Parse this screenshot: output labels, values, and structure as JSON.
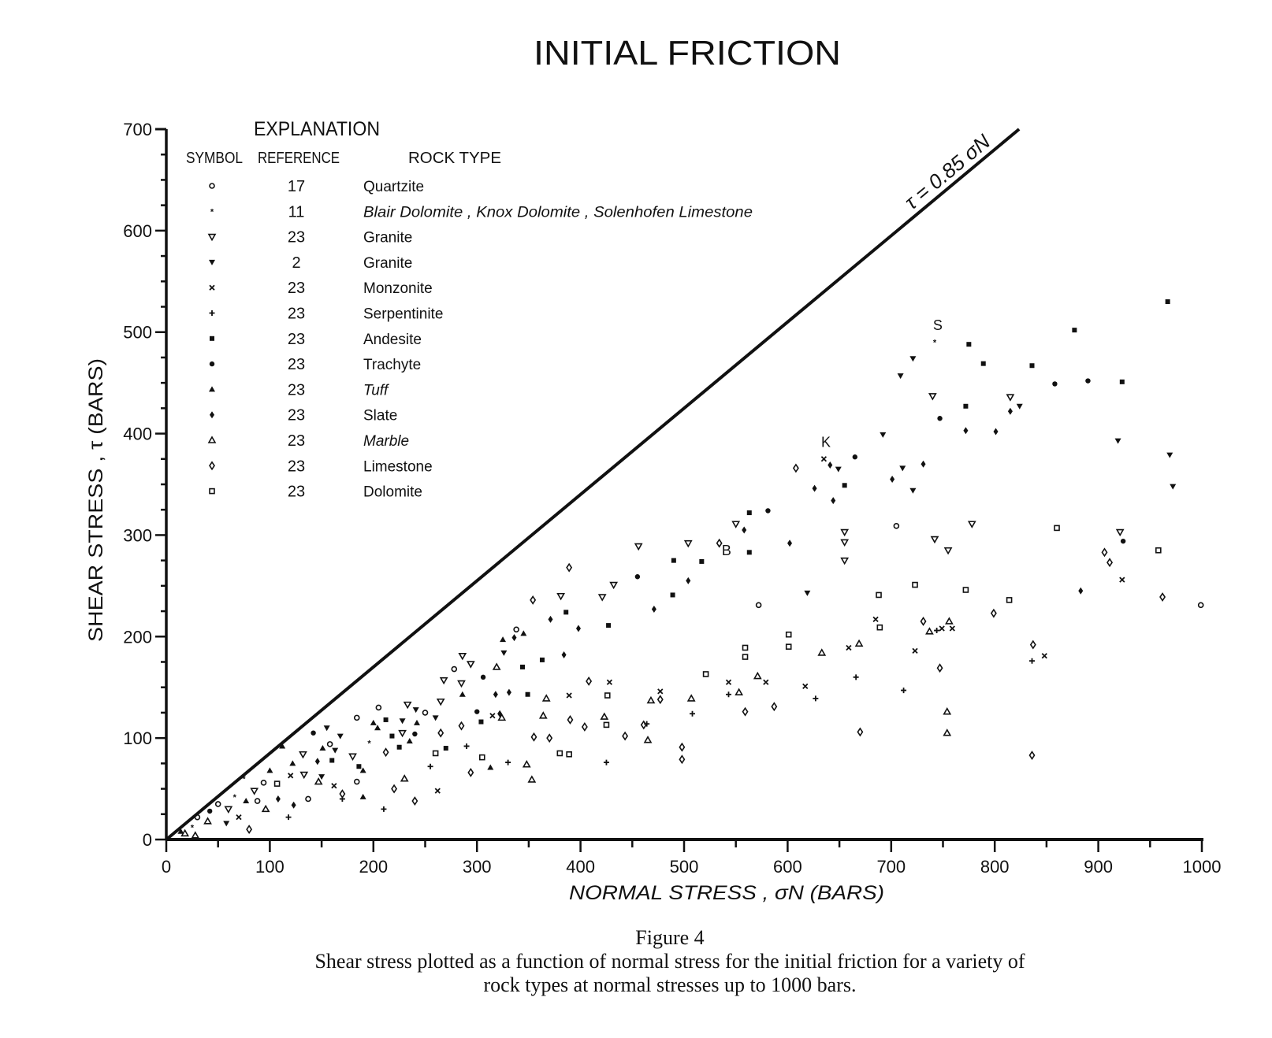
{
  "chart_data": {
    "type": "scatter",
    "title": "INITIAL FRICTION",
    "xlabel": "NORMAL STRESS , σN (BARS)",
    "ylabel": "SHEAR STRESS , τ (BARS)",
    "xlim": [
      0,
      1000
    ],
    "ylim": [
      0,
      700
    ],
    "x_ticks": [
      "0",
      "100",
      "200",
      "300",
      "400",
      "500",
      "600",
      "700",
      "800",
      "900",
      "1000"
    ],
    "y_ticks": [
      "0",
      "100",
      "200",
      "300",
      "400",
      "500",
      "600",
      "700"
    ],
    "grid": false,
    "reference_line": {
      "label": "τ = 0.85 σN",
      "slope": 0.85
    },
    "legend": {
      "title": "EXPLANATION",
      "headers": {
        "symbol": "SYMBOL",
        "reference": "REFERENCE",
        "rock_type": "ROCK TYPE"
      },
      "placement": "top-left",
      "entries": [
        {
          "key": "quartzite",
          "reference": "17",
          "rock_type": "Quartzite"
        },
        {
          "key": "blair",
          "reference": "11",
          "rock_type": "Blair Dolomite , Knox Dolomite , Solenhofen Limestone"
        },
        {
          "key": "granite23",
          "reference": "23",
          "rock_type": "Granite"
        },
        {
          "key": "granite2",
          "reference": "2",
          "rock_type": "Granite"
        },
        {
          "key": "monzonite",
          "reference": "23",
          "rock_type": "Monzonite"
        },
        {
          "key": "serpentinite",
          "reference": "23",
          "rock_type": "Serpentinite"
        },
        {
          "key": "andesite",
          "reference": "23",
          "rock_type": "Andesite"
        },
        {
          "key": "trachyte",
          "reference": "23",
          "rock_type": "Trachyte"
        },
        {
          "key": "tuff",
          "reference": "23",
          "rock_type": "Tuff"
        },
        {
          "key": "slate",
          "reference": "23",
          "rock_type": "Slate"
        },
        {
          "key": "marble",
          "reference": "23",
          "rock_type": "Marble"
        },
        {
          "key": "limestone",
          "reference": "23",
          "rock_type": "Limestone"
        },
        {
          "key": "dolomite",
          "reference": "23",
          "rock_type": "Dolomite"
        }
      ]
    },
    "annotations": [
      {
        "text": "S",
        "x": 745,
        "y": 502
      },
      {
        "text": "K",
        "x": 637,
        "y": 387
      },
      {
        "text": "B",
        "x": 541,
        "y": 280
      }
    ],
    "points": [
      [
        967,
        530,
        "andesite"
      ],
      [
        877,
        502,
        "andesite"
      ],
      [
        742,
        490,
        "blair"
      ],
      [
        721,
        474,
        "granite2"
      ],
      [
        709,
        457,
        "granite2"
      ],
      [
        775,
        488,
        "andesite"
      ],
      [
        789,
        469,
        "andesite"
      ],
      [
        836,
        467,
        "andesite"
      ],
      [
        858,
        449,
        "trachyte"
      ],
      [
        890,
        452,
        "trachyte"
      ],
      [
        923,
        451,
        "andesite"
      ],
      [
        740,
        437,
        "granite23"
      ],
      [
        747,
        415,
        "trachyte"
      ],
      [
        772,
        427,
        "andesite"
      ],
      [
        772,
        403,
        "slate"
      ],
      [
        801,
        402,
        "slate"
      ],
      [
        815,
        436,
        "granite23"
      ],
      [
        815,
        422,
        "slate"
      ],
      [
        824,
        427,
        "granite2"
      ],
      [
        692,
        399,
        "granite2"
      ],
      [
        731,
        370,
        "slate"
      ],
      [
        711,
        366,
        "granite2"
      ],
      [
        701,
        355,
        "slate"
      ],
      [
        721,
        344,
        "granite2"
      ],
      [
        665,
        377,
        "trachyte"
      ],
      [
        635,
        375,
        "monzonite"
      ],
      [
        641,
        369,
        "slate"
      ],
      [
        649,
        365,
        "granite2"
      ],
      [
        655,
        349,
        "andesite"
      ],
      [
        644,
        334,
        "slate"
      ],
      [
        626,
        346,
        "slate"
      ],
      [
        608,
        366,
        "limestone"
      ],
      [
        919,
        393,
        "granite2"
      ],
      [
        969,
        379,
        "granite2"
      ],
      [
        972,
        348,
        "granite2"
      ],
      [
        655,
        303,
        "granite23"
      ],
      [
        655,
        293,
        "granite23"
      ],
      [
        655,
        275,
        "granite23"
      ],
      [
        705,
        309,
        "quartzite"
      ],
      [
        778,
        311,
        "granite23"
      ],
      [
        742,
        296,
        "granite23"
      ],
      [
        755,
        285,
        "granite23"
      ],
      [
        860,
        307,
        "dolomite"
      ],
      [
        921,
        303,
        "granite23"
      ],
      [
        924,
        294,
        "trachyte"
      ],
      [
        906,
        283,
        "limestone"
      ],
      [
        911,
        273,
        "limestone"
      ],
      [
        958,
        285,
        "dolomite"
      ],
      [
        923,
        256,
        "monzonite"
      ],
      [
        962,
        239,
        "limestone"
      ],
      [
        999,
        231,
        "quartzite"
      ],
      [
        883,
        245,
        "slate"
      ],
      [
        772,
        246,
        "dolomite"
      ],
      [
        814,
        236,
        "dolomite"
      ],
      [
        799,
        223,
        "limestone"
      ],
      [
        723,
        251,
        "dolomite"
      ],
      [
        688,
        241,
        "dolomite"
      ],
      [
        619,
        243,
        "granite2"
      ],
      [
        602,
        292,
        "slate"
      ],
      [
        581,
        324,
        "trachyte"
      ],
      [
        563,
        322,
        "andesite"
      ],
      [
        550,
        311,
        "granite23"
      ],
      [
        558,
        305,
        "slate"
      ],
      [
        563,
        283,
        "andesite"
      ],
      [
        534,
        292,
        "limestone"
      ],
      [
        517,
        274,
        "andesite"
      ],
      [
        504,
        292,
        "granite23"
      ],
      [
        490,
        275,
        "andesite"
      ],
      [
        504,
        255,
        "slate"
      ],
      [
        489,
        241,
        "andesite"
      ],
      [
        456,
        289,
        "granite23"
      ],
      [
        455,
        259,
        "trachyte"
      ],
      [
        432,
        251,
        "granite23"
      ],
      [
        421,
        239,
        "granite23"
      ],
      [
        427,
        211,
        "andesite"
      ],
      [
        471,
        227,
        "slate"
      ],
      [
        572,
        231,
        "quartzite"
      ],
      [
        398,
        208,
        "slate"
      ],
      [
        386,
        224,
        "andesite"
      ],
      [
        381,
        240,
        "granite23"
      ],
      [
        389,
        268,
        "limestone"
      ],
      [
        371,
        217,
        "slate"
      ],
      [
        354,
        236,
        "limestone"
      ],
      [
        345,
        203,
        "tuff"
      ],
      [
        363,
        177,
        "andesite"
      ],
      [
        384,
        182,
        "slate"
      ],
      [
        601,
        202,
        "dolomite"
      ],
      [
        601,
        190,
        "dolomite"
      ],
      [
        559,
        189,
        "dolomite"
      ],
      [
        559,
        180,
        "dolomite"
      ],
      [
        521,
        163,
        "dolomite"
      ],
      [
        633,
        184,
        "marble"
      ],
      [
        659,
        189,
        "monzonite"
      ],
      [
        669,
        193,
        "marble"
      ],
      [
        685,
        217,
        "monzonite"
      ],
      [
        689,
        209,
        "dolomite"
      ],
      [
        723,
        186,
        "monzonite"
      ],
      [
        731,
        215,
        "limestone"
      ],
      [
        737,
        205,
        "marble"
      ],
      [
        744,
        206,
        "serpentinite"
      ],
      [
        749,
        208,
        "monzonite"
      ],
      [
        756,
        215,
        "marble"
      ],
      [
        759,
        208,
        "monzonite"
      ],
      [
        747,
        169,
        "limestone"
      ],
      [
        754,
        126,
        "marble"
      ],
      [
        754,
        105,
        "marble"
      ],
      [
        837,
        192,
        "limestone"
      ],
      [
        836,
        176,
        "serpentinite"
      ],
      [
        848,
        181,
        "monzonite"
      ],
      [
        836,
        83,
        "limestone"
      ],
      [
        670,
        106,
        "limestone"
      ],
      [
        666,
        160,
        "serpentinite"
      ],
      [
        712,
        147,
        "serpentinite"
      ],
      [
        617,
        151,
        "monzonite"
      ],
      [
        627,
        139,
        "serpentinite"
      ],
      [
        571,
        161,
        "marble"
      ],
      [
        579,
        155,
        "monzonite"
      ],
      [
        543,
        155,
        "monzonite"
      ],
      [
        543,
        143,
        "serpentinite"
      ],
      [
        553,
        145,
        "marble"
      ],
      [
        559,
        126,
        "limestone"
      ],
      [
        587,
        131,
        "limestone"
      ],
      [
        507,
        139,
        "marble"
      ],
      [
        508,
        124,
        "serpentinite"
      ],
      [
        498,
        91,
        "limestone"
      ],
      [
        498,
        79,
        "limestone"
      ],
      [
        477,
        146,
        "monzonite"
      ],
      [
        477,
        138,
        "limestone"
      ],
      [
        468,
        137,
        "marble"
      ],
      [
        464,
        114,
        "serpentinite"
      ],
      [
        461,
        113,
        "limestone"
      ],
      [
        465,
        98,
        "marble"
      ],
      [
        443,
        102,
        "limestone"
      ],
      [
        425,
        76,
        "serpentinite"
      ],
      [
        425,
        113,
        "dolomite"
      ],
      [
        423,
        121,
        "marble"
      ],
      [
        426,
        142,
        "dolomite"
      ],
      [
        428,
        155,
        "monzonite"
      ],
      [
        408,
        156,
        "limestone"
      ],
      [
        404,
        111,
        "limestone"
      ],
      [
        390,
        118,
        "limestone"
      ],
      [
        389,
        142,
        "monzonite"
      ],
      [
        367,
        139,
        "marble"
      ],
      [
        364,
        122,
        "marble"
      ],
      [
        370,
        100,
        "limestone"
      ],
      [
        380,
        85,
        "dolomite"
      ],
      [
        389,
        84,
        "dolomite"
      ],
      [
        355,
        101,
        "limestone"
      ],
      [
        348,
        74,
        "marble"
      ],
      [
        353,
        59,
        "marble"
      ],
      [
        330,
        76,
        "serpentinite"
      ],
      [
        324,
        120,
        "marble"
      ],
      [
        315,
        122,
        "monzonite"
      ],
      [
        304,
        116,
        "andesite"
      ],
      [
        305,
        81,
        "dolomite"
      ],
      [
        294,
        66,
        "limestone"
      ],
      [
        338,
        207,
        "quartzite"
      ],
      [
        325,
        197,
        "tuff"
      ],
      [
        336,
        199,
        "slate"
      ],
      [
        326,
        184,
        "granite2"
      ],
      [
        286,
        181,
        "granite23"
      ],
      [
        294,
        173,
        "granite23"
      ],
      [
        278,
        168,
        "quartzite"
      ],
      [
        344,
        170,
        "andesite"
      ],
      [
        319,
        170,
        "marble"
      ],
      [
        268,
        157,
        "granite23"
      ],
      [
        285,
        154,
        "granite23"
      ],
      [
        306,
        160,
        "trachyte"
      ],
      [
        286,
        143,
        "tuff"
      ],
      [
        318,
        143,
        "slate"
      ],
      [
        331,
        145,
        "slate"
      ],
      [
        349,
        143,
        "andesite"
      ],
      [
        322,
        124,
        "slate"
      ],
      [
        300,
        126,
        "trachyte"
      ],
      [
        265,
        136,
        "granite23"
      ],
      [
        250,
        125,
        "quartzite"
      ],
      [
        260,
        120,
        "granite2"
      ],
      [
        233,
        133,
        "granite23"
      ],
      [
        241,
        128,
        "granite2"
      ],
      [
        205,
        130,
        "quartzite"
      ],
      [
        212,
        118,
        "andesite"
      ],
      [
        228,
        117,
        "granite2"
      ],
      [
        242,
        115,
        "tuff"
      ],
      [
        228,
        105,
        "granite23"
      ],
      [
        235,
        97,
        "tuff"
      ],
      [
        240,
        104,
        "trachyte"
      ],
      [
        204,
        110,
        "tuff"
      ],
      [
        218,
        102,
        "andesite"
      ],
      [
        225,
        91,
        "andesite"
      ],
      [
        196,
        95,
        "blair"
      ],
      [
        212,
        86,
        "limestone"
      ],
      [
        180,
        82,
        "granite23"
      ],
      [
        186,
        72,
        "andesite"
      ],
      [
        158,
        94,
        "quartzite"
      ],
      [
        151,
        90,
        "tuff"
      ],
      [
        163,
        88,
        "granite2"
      ],
      [
        146,
        77,
        "slate"
      ],
      [
        160,
        78,
        "andesite"
      ],
      [
        122,
        75,
        "tuff"
      ],
      [
        133,
        64,
        "granite23"
      ],
      [
        120,
        63,
        "monzonite"
      ],
      [
        147,
        57,
        "marble"
      ],
      [
        162,
        53,
        "monzonite"
      ],
      [
        170,
        40,
        "serpentinite"
      ],
      [
        137,
        40,
        "quartzite"
      ],
      [
        107,
        55,
        "dolomite"
      ],
      [
        94,
        56,
        "quartzite"
      ],
      [
        85,
        48,
        "granite23"
      ],
      [
        88,
        38,
        "quartzite"
      ],
      [
        96,
        30,
        "marble"
      ],
      [
        77,
        38,
        "tuff"
      ],
      [
        66,
        42,
        "blair"
      ],
      [
        60,
        30,
        "granite23"
      ],
      [
        50,
        35,
        "quartzite"
      ],
      [
        42,
        28,
        "trachyte"
      ],
      [
        40,
        18,
        "marble"
      ],
      [
        30,
        22,
        "quartzite"
      ],
      [
        25,
        12,
        "blair"
      ],
      [
        18,
        6,
        "marble"
      ],
      [
        14,
        8,
        "tuff"
      ],
      [
        28,
        4,
        "marble"
      ],
      [
        58,
        16,
        "granite2"
      ],
      [
        70,
        22,
        "monzonite"
      ],
      [
        80,
        10,
        "limestone"
      ],
      [
        108,
        40,
        "slate"
      ],
      [
        123,
        34,
        "slate"
      ],
      [
        118,
        22,
        "serpentinite"
      ],
      [
        170,
        45,
        "limestone"
      ],
      [
        184,
        57,
        "quartzite"
      ],
      [
        190,
        68,
        "tuff"
      ],
      [
        210,
        30,
        "serpentinite"
      ],
      [
        220,
        50,
        "limestone"
      ],
      [
        230,
        60,
        "marble"
      ],
      [
        240,
        38,
        "limestone"
      ],
      [
        262,
        48,
        "monzonite"
      ],
      [
        270,
        90,
        "andesite"
      ],
      [
        260,
        85,
        "dolomite"
      ],
      [
        190,
        42,
        "tuff"
      ],
      [
        150,
        62,
        "granite2"
      ],
      [
        132,
        84,
        "granite23"
      ],
      [
        100,
        68,
        "tuff"
      ],
      [
        75,
        60,
        "blair"
      ],
      [
        112,
        92,
        "tuff"
      ],
      [
        142,
        105,
        "trachyte"
      ],
      [
        155,
        110,
        "granite2"
      ],
      [
        168,
        102,
        "granite2"
      ],
      [
        184,
        120,
        "quartzite"
      ],
      [
        200,
        115,
        "tuff"
      ],
      [
        265,
        105,
        "limestone"
      ],
      [
        285,
        112,
        "limestone"
      ],
      [
        290,
        92,
        "serpentinite"
      ],
      [
        255,
        72,
        "serpentinite"
      ],
      [
        313,
        71,
        "tuff"
      ]
    ]
  },
  "caption": {
    "figure_label": "Figure 4",
    "line1": "Shear stress plotted as a function of normal stress for the initial friction for a variety of",
    "line2": "rock types at normal stresses up to 1000 bars."
  }
}
